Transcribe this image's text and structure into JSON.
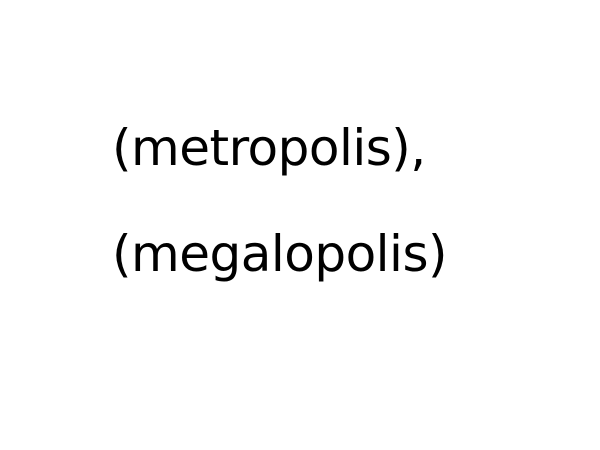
{
  "text": {
    "line1": "(metropolis),",
    "line2": "(megalopolis)"
  },
  "colors": {
    "background": "#ffffff",
    "text": "#000000"
  }
}
